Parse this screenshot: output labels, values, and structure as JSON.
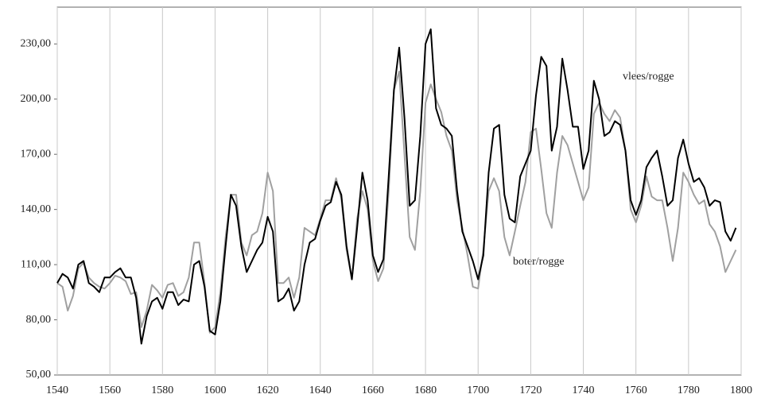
{
  "chart_data": {
    "type": "line",
    "x": [
      1540,
      1542,
      1544,
      1546,
      1548,
      1550,
      1552,
      1554,
      1556,
      1558,
      1560,
      1562,
      1564,
      1566,
      1568,
      1570,
      1572,
      1574,
      1576,
      1578,
      1580,
      1582,
      1584,
      1586,
      1588,
      1590,
      1592,
      1594,
      1596,
      1598,
      1600,
      1602,
      1604,
      1606,
      1608,
      1610,
      1612,
      1614,
      1616,
      1618,
      1620,
      1622,
      1624,
      1626,
      1628,
      1630,
      1632,
      1634,
      1636,
      1638,
      1640,
      1642,
      1644,
      1646,
      1648,
      1650,
      1652,
      1654,
      1656,
      1658,
      1660,
      1662,
      1664,
      1666,
      1668,
      1670,
      1672,
      1674,
      1676,
      1678,
      1680,
      1682,
      1684,
      1686,
      1688,
      1690,
      1692,
      1694,
      1696,
      1698,
      1700,
      1702,
      1704,
      1706,
      1708,
      1710,
      1712,
      1714,
      1716,
      1718,
      1720,
      1722,
      1724,
      1726,
      1728,
      1730,
      1732,
      1734,
      1736,
      1738,
      1740,
      1742,
      1744,
      1746,
      1748,
      1750,
      1752,
      1754,
      1756,
      1758,
      1760,
      1762,
      1764,
      1766,
      1768,
      1770,
      1772,
      1774,
      1776,
      1778,
      1780,
      1782,
      1784,
      1786,
      1788,
      1790,
      1792,
      1794,
      1796,
      1798
    ],
    "series": [
      {
        "name": "boter/rogge",
        "color": "#a0a0a0",
        "values": [
          100,
          98,
          85,
          93,
          108,
          111,
          103,
          100,
          98,
          97,
          100,
          104,
          103,
          101,
          94,
          95,
          76,
          85,
          99,
          96,
          92,
          99,
          100,
          93,
          95,
          103,
          122,
          122,
          100,
          73,
          76,
          95,
          125,
          148,
          148,
          122,
          115,
          126,
          128,
          138,
          160,
          150,
          100,
          100,
          103,
          92,
          103,
          130,
          128,
          126,
          135,
          145,
          145,
          157,
          146,
          118,
          102,
          135,
          150,
          140,
          112,
          101,
          108,
          150,
          205,
          215,
          170,
          125,
          118,
          150,
          198,
          208,
          200,
          193,
          180,
          172,
          145,
          130,
          115,
          98,
          97,
          118,
          150,
          157,
          150,
          125,
          115,
          128,
          142,
          155,
          182,
          184,
          162,
          138,
          130,
          160,
          180,
          175,
          165,
          155,
          145,
          152,
          192,
          198,
          192,
          188,
          194,
          190,
          172,
          140,
          133,
          142,
          158,
          147,
          145,
          145,
          130,
          112,
          130,
          160,
          155,
          148,
          143,
          145,
          132,
          128,
          120,
          106,
          112,
          118
        ]
      },
      {
        "name": "vlees/rogge",
        "color": "#000000",
        "values": [
          100,
          105,
          103,
          97,
          110,
          112,
          100,
          98,
          95,
          103,
          103,
          106,
          108,
          103,
          103,
          92,
          67,
          82,
          90,
          92,
          86,
          95,
          95,
          88,
          91,
          90,
          110,
          112,
          98,
          74,
          72,
          90,
          120,
          148,
          142,
          120,
          106,
          112,
          118,
          122,
          136,
          128,
          90,
          92,
          97,
          85,
          90,
          110,
          122,
          124,
          134,
          142,
          144,
          155,
          148,
          120,
          102,
          130,
          160,
          145,
          115,
          106,
          113,
          158,
          205,
          228,
          190,
          142,
          145,
          180,
          230,
          238,
          195,
          186,
          184,
          180,
          150,
          128,
          120,
          112,
          102,
          115,
          160,
          184,
          186,
          148,
          135,
          133,
          158,
          165,
          172,
          202,
          223,
          218,
          172,
          185,
          222,
          205,
          185,
          185,
          162,
          172,
          210,
          200,
          180,
          182,
          188,
          186,
          172,
          145,
          137,
          145,
          163,
          168,
          172,
          158,
          142,
          145,
          168,
          178,
          165,
          155,
          157,
          152,
          142,
          145,
          144,
          128,
          123,
          130
        ]
      }
    ],
    "xlim": [
      1540,
      1800
    ],
    "xticks": [
      1540,
      1560,
      1580,
      1600,
      1620,
      1640,
      1660,
      1680,
      1700,
      1720,
      1740,
      1760,
      1780,
      1800
    ],
    "ylim": [
      50,
      250
    ],
    "yticks": [
      {
        "value": 50,
        "label": "50,00"
      },
      {
        "value": 80,
        "label": "80,00"
      },
      {
        "value": 110,
        "label": "110,00"
      },
      {
        "value": 140,
        "label": "140,00"
      },
      {
        "value": 170,
        "label": "170,00"
      },
      {
        "value": 200,
        "label": "200,00"
      },
      {
        "value": 230,
        "label": "230,00"
      }
    ],
    "grid": true
  }
}
